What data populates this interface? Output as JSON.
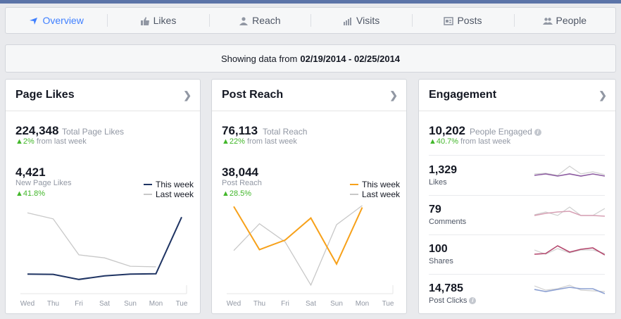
{
  "tabs": [
    {
      "label": "Overview",
      "icon": "overview-icon",
      "active": true
    },
    {
      "label": "Likes",
      "icon": "thumbs-up-icon",
      "active": false
    },
    {
      "label": "Reach",
      "icon": "people-icon",
      "active": false
    },
    {
      "label": "Visits",
      "icon": "bars-icon",
      "active": false
    },
    {
      "label": "Posts",
      "icon": "posts-icon",
      "active": false
    },
    {
      "label": "People",
      "icon": "group-icon",
      "active": false
    }
  ],
  "date_range": {
    "prefix": "Showing data from",
    "range": "02/19/2014 - 02/25/2014"
  },
  "colors": {
    "accent": "#4080ff",
    "positive": "#42b72a",
    "this_week_likes": "#1f3463",
    "this_week_reach": "#f7a11a",
    "last_week": "#c8c8c8"
  },
  "page_likes": {
    "title": "Page Likes",
    "total_value": "224,348",
    "total_label": "Total Page Likes",
    "total_change": "2%",
    "total_change_suffix": "from last week",
    "new_value": "4,421",
    "new_label": "New Page Likes",
    "new_change": "41.8%",
    "legend_this": "This week",
    "legend_last": "Last week"
  },
  "post_reach": {
    "title": "Post Reach",
    "total_value": "76,113",
    "total_label": "Total Reach",
    "total_change": "22%",
    "total_change_suffix": "from last week",
    "sub_value": "38,044",
    "sub_label": "Post Reach",
    "sub_change": "28.5%",
    "legend_this": "This week",
    "legend_last": "Last week"
  },
  "engagement": {
    "title": "Engagement",
    "total_value": "10,202",
    "total_label": "People Engaged",
    "total_change": "40.7%",
    "total_change_suffix": "from last week",
    "rows": [
      {
        "value": "1,329",
        "label": "Likes",
        "color": "#8b5aa0"
      },
      {
        "value": "79",
        "label": "Comments",
        "color": "#d7a0b4"
      },
      {
        "value": "100",
        "label": "Shares",
        "color": "#b4486e"
      },
      {
        "value": "14,785",
        "label": "Post Clicks",
        "color": "#8ca0d2"
      }
    ]
  },
  "chart_data": [
    {
      "type": "line",
      "x": [
        "Wed",
        "Thu",
        "Fri",
        "Sat",
        "Sun",
        "Mon",
        "Tue"
      ],
      "series": [
        {
          "name": "This week",
          "values": [
            530,
            525,
            440,
            500,
            530,
            535,
            1480
          ]
        },
        {
          "name": "Last week",
          "values": [
            1550,
            1450,
            850,
            800,
            660,
            650,
            null
          ]
        }
      ]
    },
    {
      "type": "line",
      "x": [
        "Wed",
        "Thu",
        "Fri",
        "Sat",
        "Sun",
        "Mon",
        "Tue"
      ],
      "series": [
        {
          "name": "This week",
          "values": [
            8800,
            4300,
            5300,
            7600,
            2800,
            8700,
            null
          ]
        },
        {
          "name": "Last week",
          "values": [
            4200,
            7000,
            5100,
            600,
            6900,
            8900,
            null
          ]
        }
      ]
    }
  ]
}
